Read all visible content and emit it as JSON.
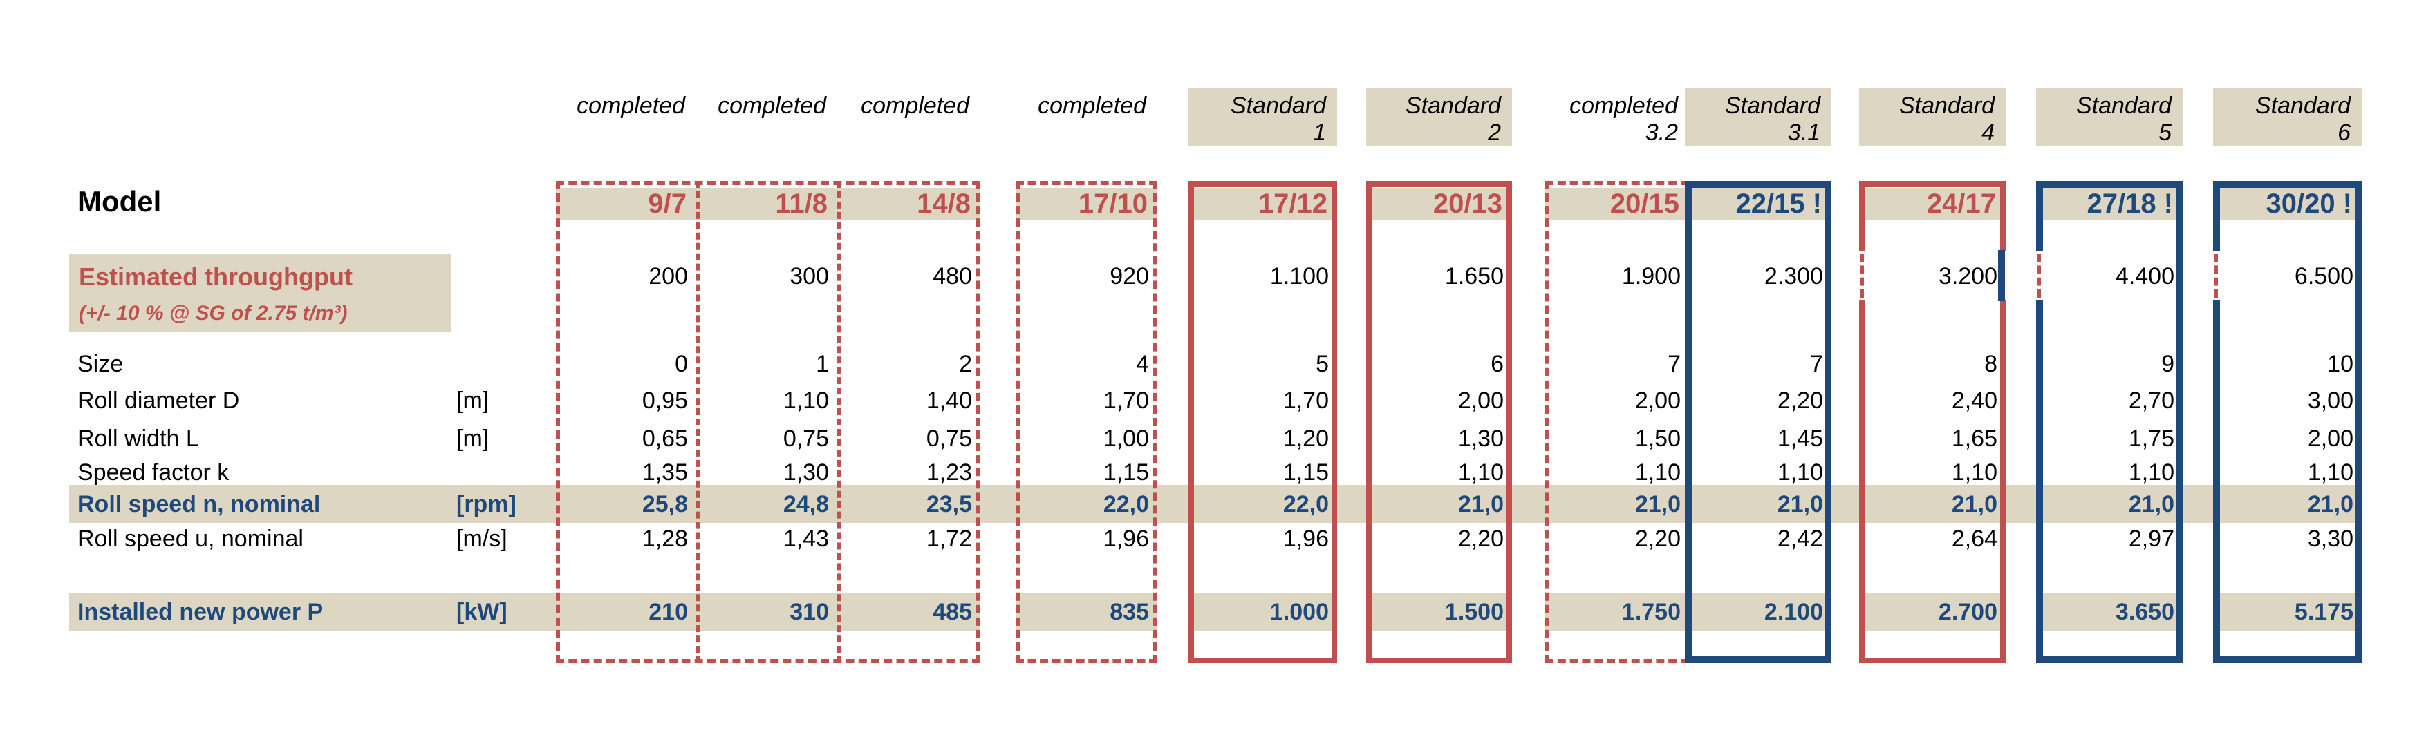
{
  "palette": {
    "beige": "#dcd6c2",
    "red": "#c0504d",
    "blue": "#1f497d",
    "background": "#ffffff",
    "text": "#000000"
  },
  "left_panel": {
    "model_label": "Model",
    "throughput_label_line1": "Estimated throughgput",
    "throughput_label_line2": "(+/- 10 % @ SG of 2.75 t/m³)"
  },
  "table": {
    "value_keys": [
      "throughput",
      "size",
      "diameter",
      "width",
      "k",
      "n",
      "u",
      "power"
    ],
    "rows": [
      {
        "key": "size",
        "label": "Size",
        "unit": "",
        "emphasis": false
      },
      {
        "key": "diameter",
        "label": "Roll diameter D",
        "unit": "[m]",
        "emphasis": false
      },
      {
        "key": "width",
        "label": "Roll width L",
        "unit": "[m]",
        "emphasis": false
      },
      {
        "key": "k",
        "label": "Speed factor k",
        "unit": "",
        "emphasis": false
      },
      {
        "key": "n",
        "label": "Roll speed n, nominal",
        "unit": "[rpm]",
        "emphasis": true
      },
      {
        "key": "u",
        "label": "Roll speed u, nominal",
        "unit": "[m/s]",
        "emphasis": false
      },
      {
        "key": "power",
        "label": "Installed new power P",
        "unit": "[kW]",
        "emphasis": true
      }
    ],
    "columns": [
      {
        "header": "completed",
        "header_line2": "",
        "header_beige": false,
        "model": "9/7",
        "model_color": "red",
        "values": {
          "throughput": "200",
          "size": "0",
          "diameter": "0,95",
          "width": "0,65",
          "k": "1,35",
          "n": "25,8",
          "u": "1,28",
          "power": "210"
        }
      },
      {
        "header": "completed",
        "header_line2": "",
        "header_beige": false,
        "model": "11/8",
        "model_color": "red",
        "values": {
          "throughput": "300",
          "size": "1",
          "diameter": "1,10",
          "width": "0,75",
          "k": "1,30",
          "n": "24,8",
          "u": "1,43",
          "power": "310"
        }
      },
      {
        "header": "completed",
        "header_line2": "",
        "header_beige": false,
        "model": "14/8",
        "model_color": "red",
        "values": {
          "throughput": "480",
          "size": "2",
          "diameter": "1,40",
          "width": "0,75",
          "k": "1,23",
          "n": "23,5",
          "u": "1,72",
          "power": "485"
        }
      },
      {
        "header": "completed",
        "header_line2": "",
        "header_beige": false,
        "model": "17/10",
        "model_color": "red",
        "values": {
          "throughput": "920",
          "size": "4",
          "diameter": "1,70",
          "width": "1,00",
          "k": "1,15",
          "n": "22,0",
          "u": "1,96",
          "power": "835"
        }
      },
      {
        "header": "Standard",
        "header_line2": "1",
        "header_beige": true,
        "model": "17/12",
        "model_color": "red",
        "values": {
          "throughput": "1.100",
          "size": "5",
          "diameter": "1,70",
          "width": "1,20",
          "k": "1,15",
          "n": "22,0",
          "u": "1,96",
          "power": "1.000"
        }
      },
      {
        "header": "Standard",
        "header_line2": "2",
        "header_beige": true,
        "model": "20/13",
        "model_color": "red",
        "values": {
          "throughput": "1.650",
          "size": "6",
          "diameter": "2,00",
          "width": "1,30",
          "k": "1,10",
          "n": "21,0",
          "u": "2,20",
          "power": "1.500"
        }
      },
      {
        "header": "completed",
        "header_line2": "3.2",
        "header_beige": false,
        "model": "20/15",
        "model_color": "red",
        "values": {
          "throughput": "1.900",
          "size": "7",
          "diameter": "2,00",
          "width": "1,50",
          "k": "1,10",
          "n": "21,0",
          "u": "2,20",
          "power": "1.750"
        }
      },
      {
        "header": "Standard",
        "header_line2": "3.1",
        "header_beige": true,
        "model": "22/15 !",
        "model_color": "blue",
        "values": {
          "throughput": "2.300",
          "size": "7",
          "diameter": "2,20",
          "width": "1,45",
          "k": "1,10",
          "n": "21,0",
          "u": "2,42",
          "power": "2.100"
        }
      },
      {
        "header": "Standard",
        "header_line2": "4",
        "header_beige": true,
        "model": "24/17",
        "model_color": "red",
        "values": {
          "throughput": "3.200",
          "size": "8",
          "diameter": "2,40",
          "width": "1,65",
          "k": "1,10",
          "n": "21,0",
          "u": "2,64",
          "power": "2.700"
        }
      },
      {
        "header": "Standard",
        "header_line2": "5",
        "header_beige": true,
        "model": "27/18 !",
        "model_color": "blue",
        "values": {
          "throughput": "4.400",
          "size": "9",
          "diameter": "2,70",
          "width": "1,75",
          "k": "1,10",
          "n": "21,0",
          "u": "2,97",
          "power": "3.650"
        }
      },
      {
        "header": "Standard",
        "header_line2": "6",
        "header_beige": true,
        "model": "30/20 !",
        "model_color": "blue",
        "values": {
          "throughput": "6.500",
          "size": "10",
          "diameter": "3,00",
          "width": "2,00",
          "k": "1,10",
          "n": "21,0",
          "u": "3,30",
          "power": "5.175"
        }
      }
    ]
  }
}
